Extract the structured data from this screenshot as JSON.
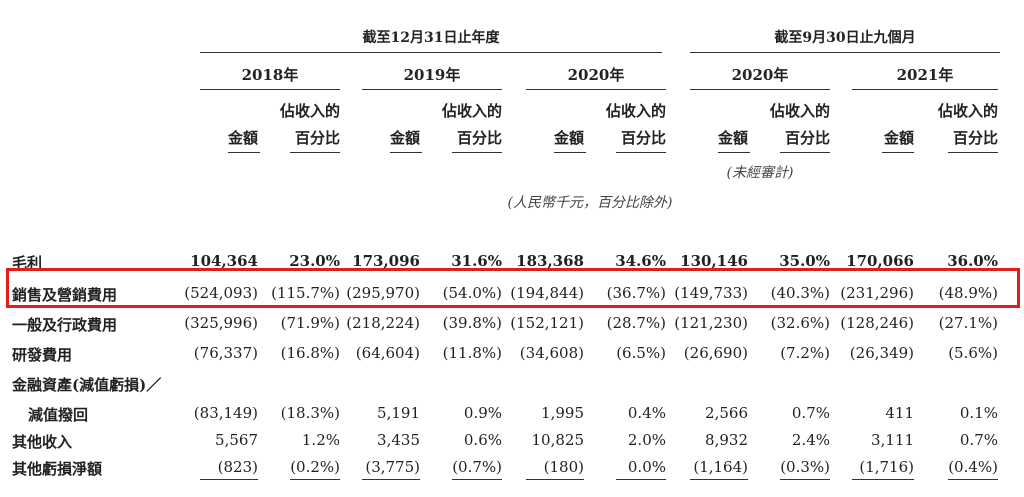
{
  "header": {
    "group1": "截至12月31日止年度",
    "group2": "截至9月30日止九個月",
    "years": [
      "2018年",
      "2019年",
      "2020年",
      "2020年",
      "2021年"
    ],
    "amount_label": "金額",
    "pct_label_line1": "佔收入的",
    "pct_label_line2": "百分比",
    "unaudited": "(未經審計)",
    "unit_note": "(人民幣千元，百分比除外)"
  },
  "rows": [
    {
      "label": "毛利",
      "cells": [
        "104,364",
        "23.0%",
        "173,096",
        "31.6%",
        "183,368",
        "34.6%",
        "130,146",
        "35.0%",
        "170,066",
        "36.0%"
      ]
    },
    {
      "label": "銷售及營銷費用",
      "cells": [
        "(524,093)",
        "(115.7%)",
        "(295,970)",
        "(54.0%)",
        "(194,844)",
        "(36.7%)",
        "(149,733)",
        "(40.3%)",
        "(231,296)",
        "(48.9%)"
      ]
    },
    {
      "label": "一般及行政費用",
      "cells": [
        "(325,996)",
        "(71.9%)",
        "(218,224)",
        "(39.8%)",
        "(152,121)",
        "(28.7%)",
        "(121,230)",
        "(32.6%)",
        "(128,246)",
        "(27.1%)"
      ]
    },
    {
      "label": "研發費用",
      "cells": [
        "(76,337)",
        "(16.8%)",
        "(64,604)",
        "(11.8%)",
        "(34,608)",
        "(6.5%)",
        "(26,690)",
        "(7.2%)",
        "(26,349)",
        "(5.6%)"
      ]
    },
    {
      "label": "金融資產(減值虧損)／",
      "label2": "減值撥回",
      "cells": [
        "(83,149)",
        "(18.3%)",
        "5,191",
        "0.9%",
        "1,995",
        "0.4%",
        "2,566",
        "0.7%",
        "411",
        "0.1%"
      ]
    },
    {
      "label": "其他收入",
      "cells": [
        "5,567",
        "1.2%",
        "3,435",
        "0.6%",
        "10,825",
        "2.0%",
        "8,932",
        "2.4%",
        "3,111",
        "0.7%"
      ]
    },
    {
      "label": "其他虧損淨額",
      "cells": [
        "(823)",
        "(0.2%)",
        "(3,775)",
        "(0.7%)",
        "(180)",
        "0.0%",
        "(1,164)",
        "(0.3%)",
        "(1,716)",
        "(0.4%)"
      ]
    }
  ],
  "highlight_color": "#e01e1e"
}
